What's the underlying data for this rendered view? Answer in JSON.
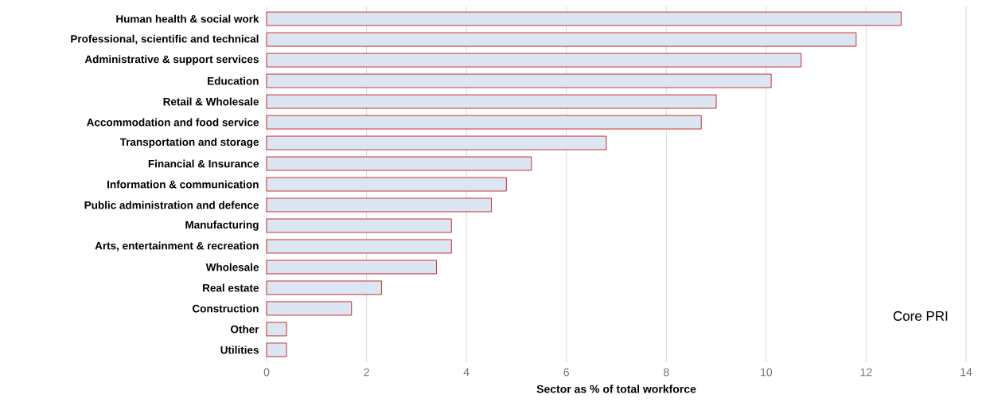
{
  "chart_data": {
    "type": "bar",
    "orientation": "horizontal",
    "xlabel": "Sector as % of total workforce",
    "categories": [
      "Human health & social work",
      "Professional, scientific and technical",
      "Administrative & support services",
      "Education",
      "Retail & Wholesale",
      "Accommodation and food service",
      "Transportation and storage",
      "Financial & Insurance",
      "Information & communication",
      "Public administration and defence",
      "Manufacturing",
      "Arts, entertainment & recreation",
      "Wholesale",
      "Real estate",
      "Construction",
      "Other",
      "Utilities"
    ],
    "values": [
      12.7,
      11.8,
      10.7,
      10.1,
      9.0,
      8.7,
      6.8,
      5.3,
      4.8,
      4.5,
      3.7,
      3.7,
      3.4,
      2.3,
      1.7,
      0.4,
      0.4
    ],
    "color": "#dce6f2",
    "xlim": [
      0,
      14
    ],
    "xticks": [
      0,
      2,
      4,
      6,
      8,
      10,
      12,
      14
    ],
    "grid": "x",
    "annotations": [
      "Core PRI"
    ]
  }
}
